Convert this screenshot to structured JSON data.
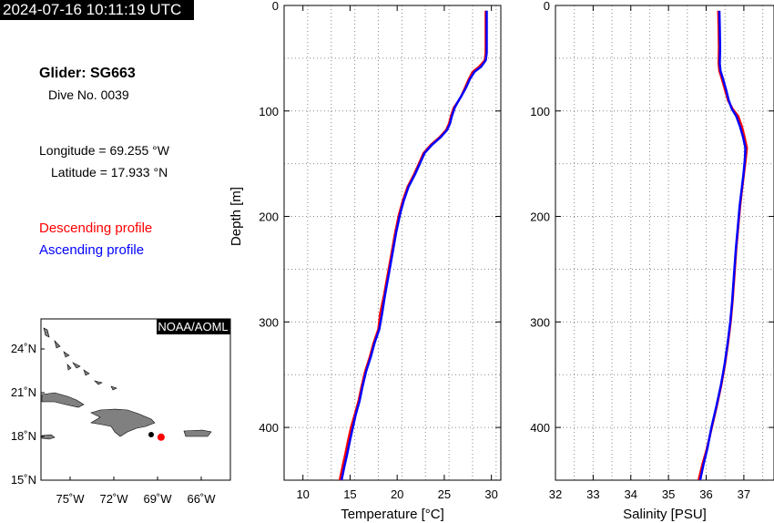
{
  "header": {
    "timestamp": "2024-07-16 10:11:19 UTC"
  },
  "info": {
    "glider": "Glider: SG663",
    "dive": "Dive No. 0039",
    "longitude": "Longitude = 69.255 °W",
    "latitude": "Latitude = 17.933 °N"
  },
  "legend": {
    "descending": "Descending profile",
    "ascending": "Ascending profile"
  },
  "colors": {
    "descending": "#ff0000",
    "ascending": "#0000ff",
    "land": "#808080"
  },
  "map": {
    "credit": "NOAA/AOML",
    "lat_ticks": [
      "24˚N",
      "21˚N",
      "18˚N",
      "15˚N"
    ],
    "lon_ticks": [
      "75˚W",
      "72˚W",
      "69˚W",
      "66˚W"
    ],
    "lon_range": [
      -77.5,
      -64.5
    ],
    "lat_range": [
      15,
      26
    ],
    "position": {
      "lon": -69.255,
      "lat": 17.933
    }
  },
  "chart_data": [
    {
      "type": "line",
      "xlabel": "Temperature [°C]",
      "ylabel": "Depth [m]",
      "xlim": [
        8,
        31
      ],
      "ylim": [
        450,
        0
      ],
      "xticks": [
        10,
        15,
        20,
        25,
        30
      ],
      "yticks": [
        0,
        100,
        200,
        300,
        400
      ],
      "grid": true,
      "series": [
        {
          "name": "Descending profile",
          "color": "#ff0000",
          "points": [
            [
              29.4,
              5
            ],
            [
              29.4,
              20
            ],
            [
              29.4,
              45
            ],
            [
              29.3,
              52
            ],
            [
              28.7,
              58
            ],
            [
              28.0,
              63
            ],
            [
              27.6,
              70
            ],
            [
              27.2,
              78
            ],
            [
              26.8,
              86
            ],
            [
              26.4,
              92
            ],
            [
              26.0,
              97
            ],
            [
              25.7,
              105
            ],
            [
              25.5,
              112
            ],
            [
              25.2,
              118
            ],
            [
              24.5,
              125
            ],
            [
              23.6,
              132
            ],
            [
              22.8,
              140
            ],
            [
              22.3,
              150
            ],
            [
              21.8,
              160
            ],
            [
              21.1,
              172
            ],
            [
              20.6,
              185
            ],
            [
              20.2,
              198
            ],
            [
              19.8,
              215
            ],
            [
              19.4,
              235
            ],
            [
              19.0,
              255
            ],
            [
              18.6,
              275
            ],
            [
              18.2,
              292
            ],
            [
              18.0,
              307
            ],
            [
              17.5,
              320
            ],
            [
              17.1,
              333
            ],
            [
              16.6,
              347
            ],
            [
              16.2,
              362
            ],
            [
              15.9,
              375
            ],
            [
              15.5,
              388
            ],
            [
              15.1,
              400
            ],
            [
              14.8,
              412
            ],
            [
              14.5,
              425
            ],
            [
              14.2,
              437
            ],
            [
              13.9,
              450
            ]
          ]
        },
        {
          "name": "Ascending profile",
          "color": "#0000ff",
          "points": [
            [
              29.5,
              5
            ],
            [
              29.5,
              20
            ],
            [
              29.5,
              45
            ],
            [
              29.4,
              52
            ],
            [
              28.9,
              58
            ],
            [
              28.2,
              63
            ],
            [
              27.7,
              70
            ],
            [
              27.3,
              78
            ],
            [
              26.8,
              86
            ],
            [
              26.4,
              92
            ],
            [
              26.1,
              97
            ],
            [
              25.8,
              105
            ],
            [
              25.6,
              112
            ],
            [
              25.3,
              118
            ],
            [
              24.6,
              125
            ],
            [
              23.7,
              132
            ],
            [
              22.9,
              140
            ],
            [
              22.4,
              150
            ],
            [
              21.9,
              160
            ],
            [
              21.2,
              172
            ],
            [
              20.7,
              185
            ],
            [
              20.3,
              198
            ],
            [
              19.9,
              215
            ],
            [
              19.5,
              235
            ],
            [
              19.1,
              255
            ],
            [
              18.7,
              275
            ],
            [
              18.4,
              292
            ],
            [
              18.1,
              307
            ],
            [
              17.6,
              320
            ],
            [
              17.2,
              333
            ],
            [
              16.7,
              347
            ],
            [
              16.3,
              362
            ],
            [
              16.0,
              375
            ],
            [
              15.6,
              388
            ],
            [
              15.3,
              400
            ],
            [
              15.0,
              412
            ],
            [
              14.7,
              425
            ],
            [
              14.4,
              437
            ],
            [
              14.1,
              450
            ]
          ]
        }
      ]
    },
    {
      "type": "line",
      "xlabel": "Salinity [PSU]",
      "ylabel": "",
      "xlim": [
        32,
        37.8
      ],
      "ylim": [
        450,
        0
      ],
      "xticks": [
        32,
        33,
        34,
        35,
        36,
        37
      ],
      "yticks": [
        0,
        100,
        200,
        300,
        400
      ],
      "grid": true,
      "series": [
        {
          "name": "Descending profile",
          "color": "#ff0000",
          "points": [
            [
              36.32,
              5
            ],
            [
              36.33,
              20
            ],
            [
              36.34,
              40
            ],
            [
              36.33,
              55
            ],
            [
              36.35,
              62
            ],
            [
              36.42,
              70
            ],
            [
              36.5,
              80
            ],
            [
              36.58,
              90
            ],
            [
              36.7,
              98
            ],
            [
              36.85,
              105
            ],
            [
              36.95,
              115
            ],
            [
              37.02,
              125
            ],
            [
              37.08,
              135
            ],
            [
              37.05,
              145
            ],
            [
              37.0,
              160
            ],
            [
              36.95,
              175
            ],
            [
              36.9,
              190
            ],
            [
              36.85,
              210
            ],
            [
              36.8,
              230
            ],
            [
              36.75,
              255
            ],
            [
              36.7,
              280
            ],
            [
              36.65,
              300
            ],
            [
              36.58,
              320
            ],
            [
              36.5,
              340
            ],
            [
              36.4,
              360
            ],
            [
              36.28,
              380
            ],
            [
              36.15,
              400
            ],
            [
              36.02,
              420
            ],
            [
              35.9,
              435
            ],
            [
              35.8,
              450
            ]
          ]
        },
        {
          "name": "Ascending profile",
          "color": "#0000ff",
          "points": [
            [
              36.35,
              5
            ],
            [
              36.36,
              20
            ],
            [
              36.37,
              40
            ],
            [
              36.36,
              55
            ],
            [
              36.38,
              62
            ],
            [
              36.45,
              70
            ],
            [
              36.53,
              80
            ],
            [
              36.6,
              90
            ],
            [
              36.68,
              98
            ],
            [
              36.8,
              105
            ],
            [
              36.9,
              115
            ],
            [
              36.98,
              125
            ],
            [
              37.04,
              135
            ],
            [
              37.03,
              145
            ],
            [
              36.99,
              160
            ],
            [
              36.94,
              175
            ],
            [
              36.89,
              190
            ],
            [
              36.84,
              210
            ],
            [
              36.79,
              230
            ],
            [
              36.74,
              255
            ],
            [
              36.69,
              280
            ],
            [
              36.64,
              300
            ],
            [
              36.57,
              320
            ],
            [
              36.49,
              340
            ],
            [
              36.39,
              360
            ],
            [
              36.27,
              380
            ],
            [
              36.14,
              400
            ],
            [
              36.03,
              420
            ],
            [
              35.93,
              435
            ],
            [
              35.84,
              450
            ]
          ]
        }
      ]
    }
  ]
}
